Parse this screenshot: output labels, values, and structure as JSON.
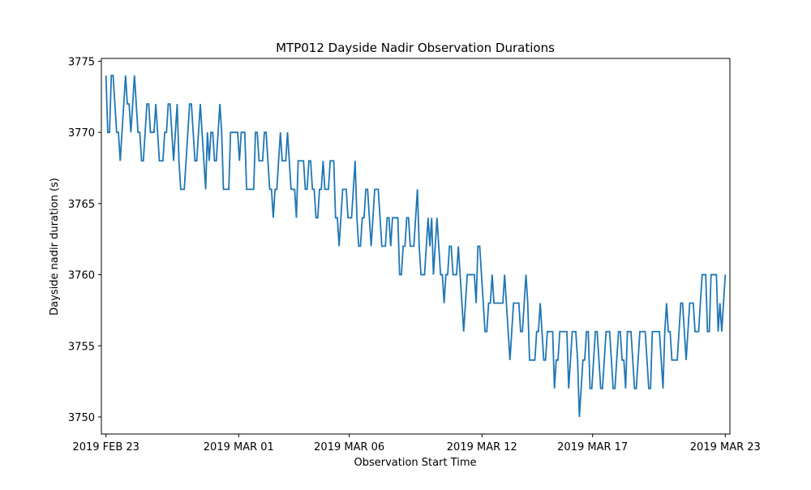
{
  "chart_data": {
    "type": "line",
    "title": "MTP012 Dayside Nadir Observation Durations",
    "xlabel": "Observation Start Time",
    "ylabel": "Dayside nadir duration (s)",
    "x_type": "date",
    "xlim": [
      "2019-02-22T19:00",
      "2019-03-23T05:00"
    ],
    "ylim": [
      3748.8,
      3775.2
    ],
    "x_ticks": [
      {
        "value": "2019-02-23",
        "label": "2019 FEB 23"
      },
      {
        "value": "2019-03-01",
        "label": "2019 MAR 01"
      },
      {
        "value": "2019-03-06",
        "label": "2019 MAR 06"
      },
      {
        "value": "2019-03-12",
        "label": "2019 MAR 12"
      },
      {
        "value": "2019-03-17",
        "label": "2019 MAR 17"
      },
      {
        "value": "2019-03-23",
        "label": "2019 MAR 23"
      }
    ],
    "y_ticks": [
      {
        "value": 3750,
        "label": "3750"
      },
      {
        "value": 3755,
        "label": "3755"
      },
      {
        "value": 3760,
        "label": "3760"
      },
      {
        "value": 3765,
        "label": "3765"
      },
      {
        "value": 3770,
        "label": "3770"
      },
      {
        "value": 3775,
        "label": "3775"
      }
    ],
    "grid": false,
    "legend": "none",
    "series": [
      {
        "color": "#1f77b4",
        "x_start": "2019-02-23T00:00",
        "x_end": "2019-03-23T00:00",
        "values": [
          3774,
          3770,
          3770,
          3774,
          3774,
          3772,
          3770,
          3770,
          3768,
          3770,
          3772,
          3774,
          3772,
          3772,
          3770,
          3772,
          3774,
          3772,
          3770,
          3770,
          3768,
          3768,
          3770,
          3772,
          3772,
          3770,
          3770,
          3770,
          3772,
          3770,
          3768,
          3768,
          3768,
          3770,
          3770,
          3772,
          3772,
          3770,
          3768,
          3770,
          3772,
          3768,
          3766,
          3766,
          3766,
          3768,
          3770,
          3772,
          3772,
          3770,
          3768,
          3768,
          3770,
          3772,
          3770,
          3768,
          3766,
          3770,
          3768,
          3770,
          3770,
          3768,
          3768,
          3770,
          3772,
          3770,
          3766,
          3766,
          3766,
          3766,
          3770,
          3770,
          3770,
          3770,
          3770,
          3768,
          3770,
          3770,
          3770,
          3766,
          3766,
          3766,
          3766,
          3766,
          3770,
          3770,
          3768,
          3768,
          3768,
          3770,
          3770,
          3768,
          3766,
          3766,
          3764,
          3766,
          3766,
          3768,
          3770,
          3768,
          3768,
          3768,
          3770,
          3768,
          3766,
          3766,
          3766,
          3764,
          3768,
          3768,
          3768,
          3768,
          3766,
          3766,
          3768,
          3768,
          3766,
          3766,
          3764,
          3764,
          3766,
          3766,
          3768,
          3766,
          3766,
          3766,
          3768,
          3768,
          3768,
          3764,
          3764,
          3762,
          3764,
          3766,
          3766,
          3766,
          3764,
          3764,
          3764,
          3766,
          3768,
          3764,
          3762,
          3762,
          3764,
          3764,
          3766,
          3766,
          3764,
          3762,
          3764,
          3766,
          3766,
          3766,
          3764,
          3762,
          3762,
          3762,
          3764,
          3764,
          3762,
          3764,
          3764,
          3764,
          3764,
          3760,
          3760,
          3762,
          3762,
          3764,
          3764,
          3762,
          3762,
          3762,
          3764,
          3766,
          3762,
          3760,
          3760,
          3760,
          3762,
          3764,
          3762,
          3764,
          3760,
          3762,
          3764,
          3762,
          3760,
          3760,
          3758,
          3760,
          3760,
          3762,
          3762,
          3760,
          3760,
          3760,
          3762,
          3760,
          3758,
          3756,
          3758,
          3760,
          3760,
          3760,
          3760,
          3760,
          3758,
          3762,
          3762,
          3760,
          3758,
          3756,
          3756,
          3758,
          3758,
          3760,
          3758,
          3758,
          3758,
          3758,
          3758,
          3758,
          3760,
          3758,
          3756,
          3754,
          3756,
          3758,
          3758,
          3758,
          3758,
          3756,
          3756,
          3758,
          3760,
          3758,
          3754,
          3754,
          3754,
          3754,
          3756,
          3756,
          3758,
          3756,
          3754,
          3754,
          3756,
          3756,
          3756,
          3756,
          3752,
          3754,
          3754,
          3756,
          3756,
          3756,
          3756,
          3756,
          3752,
          3754,
          3756,
          3756,
          3756,
          3754,
          3750,
          3752,
          3754,
          3754,
          3756,
          3756,
          3752,
          3752,
          3754,
          3756,
          3756,
          3754,
          3752,
          3752,
          3754,
          3756,
          3756,
          3756,
          3754,
          3752,
          3752,
          3754,
          3756,
          3756,
          3754,
          3754,
          3752,
          3756,
          3756,
          3756,
          3754,
          3752,
          3752,
          3754,
          3756,
          3756,
          3756,
          3756,
          3754,
          3752,
          3752,
          3756,
          3756,
          3756,
          3756,
          3756,
          3754,
          3752,
          3756,
          3758,
          3756,
          3756,
          3754,
          3754,
          3754,
          3754,
          3756,
          3758,
          3758,
          3756,
          3754,
          3756,
          3758,
          3758,
          3758,
          3756,
          3756,
          3756,
          3758,
          3760,
          3760,
          3760,
          3756,
          3756,
          3760,
          3760,
          3760,
          3760,
          3756,
          3758,
          3756,
          3758,
          3760
        ]
      }
    ]
  }
}
